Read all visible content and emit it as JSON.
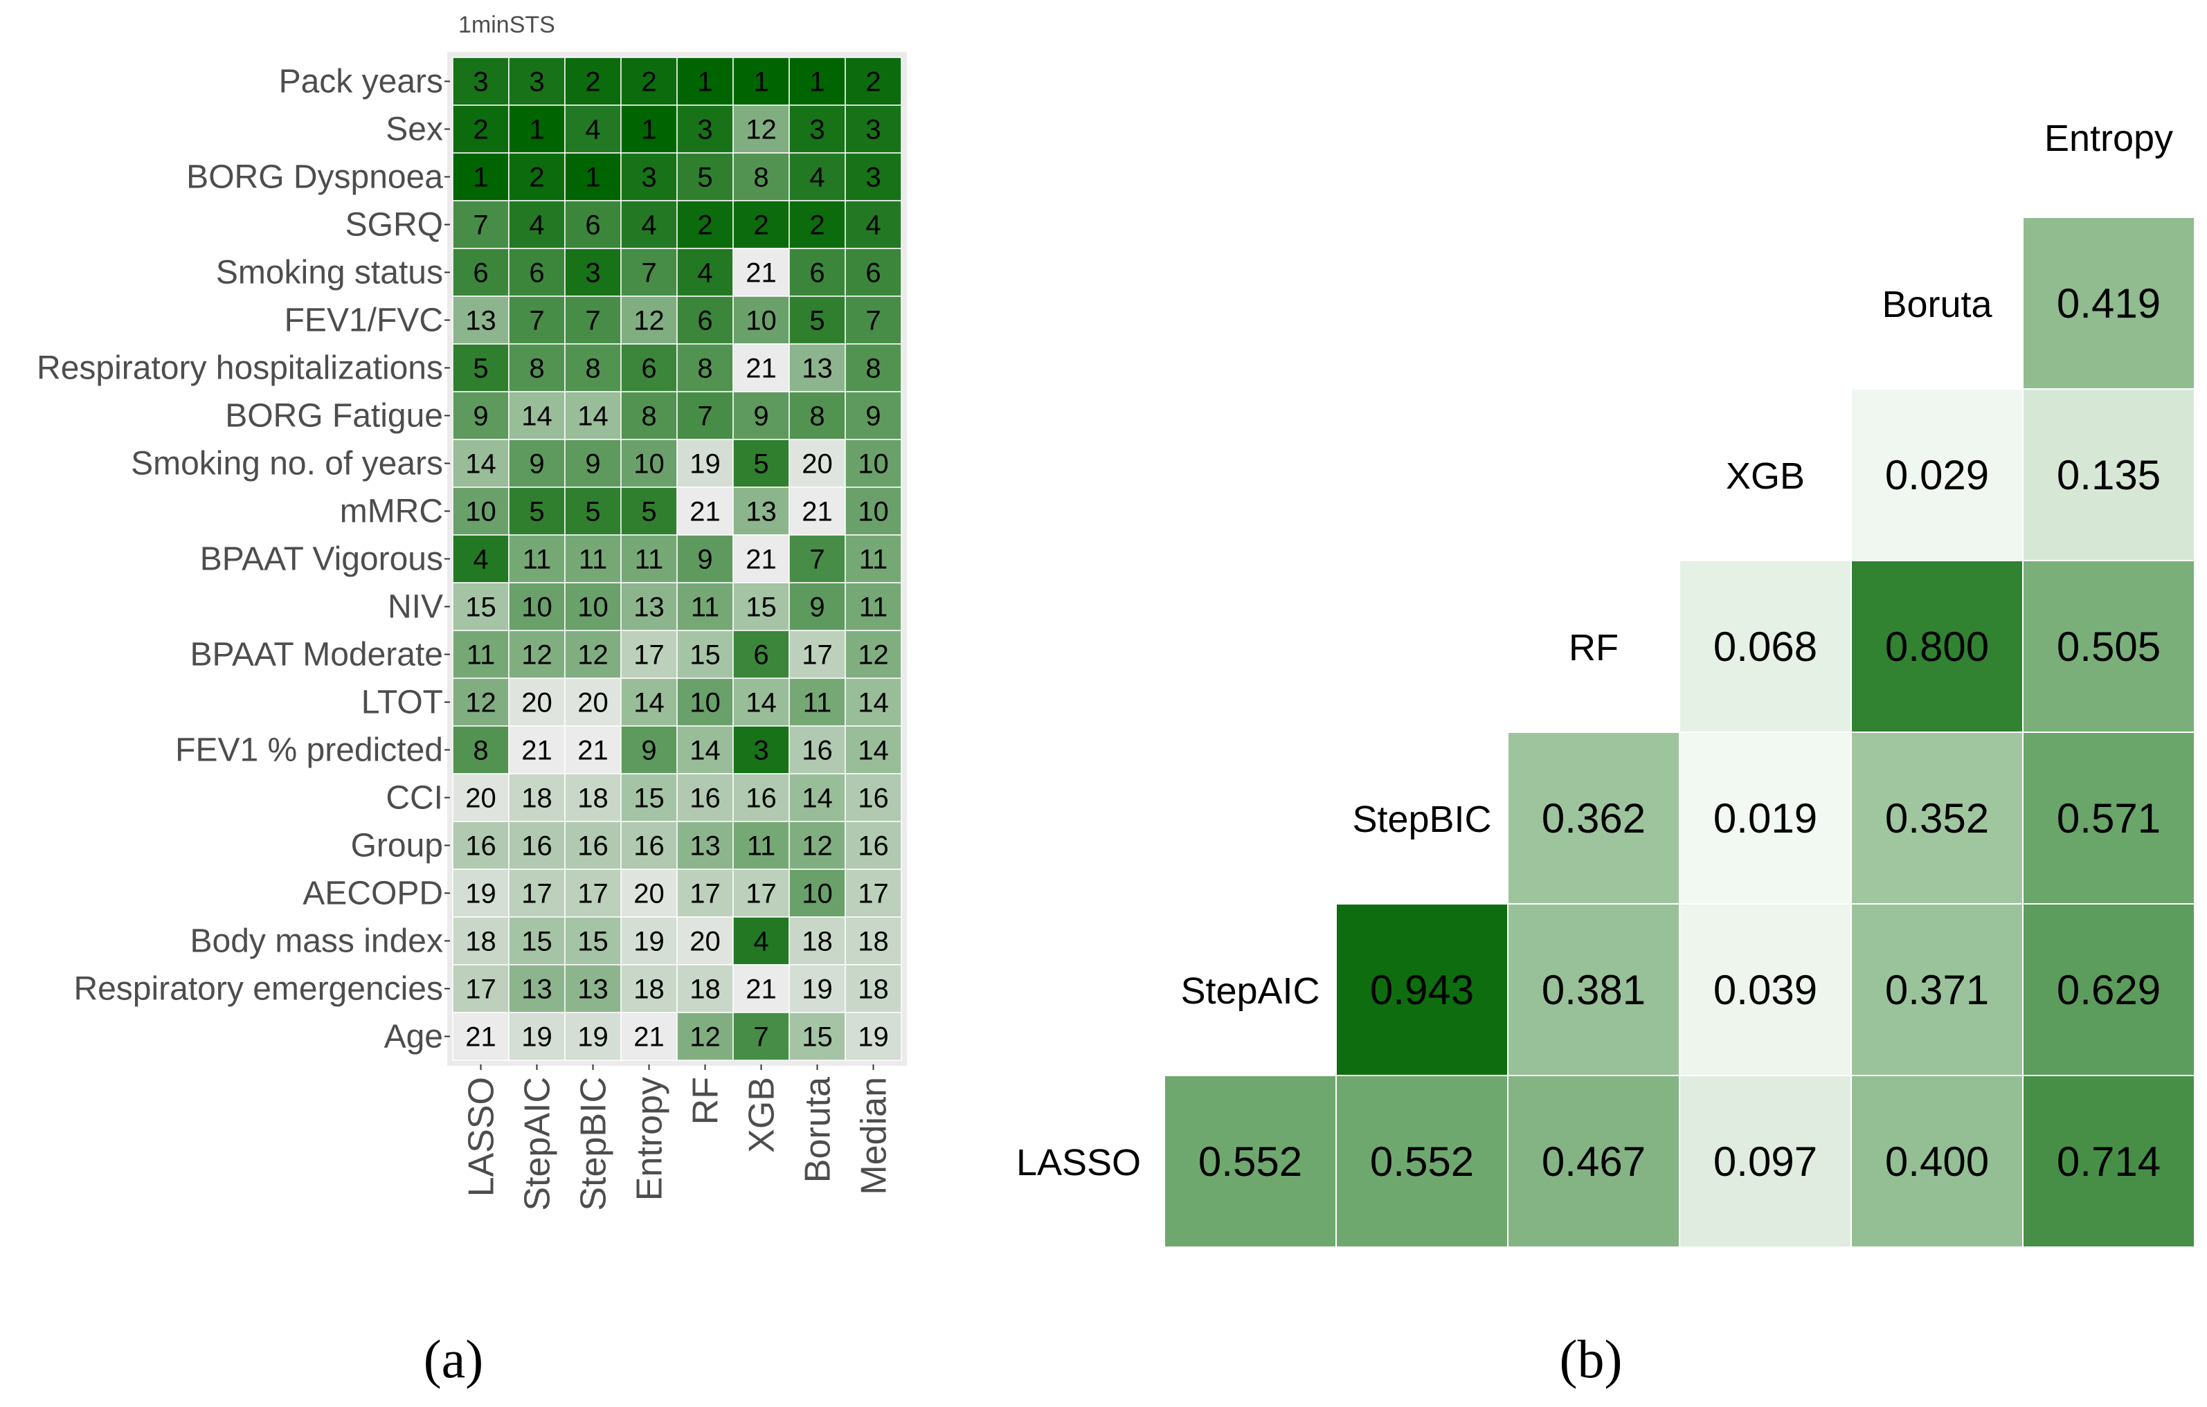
{
  "panel_a_caption": "(a)",
  "panel_b_caption": "(b)",
  "colors": {
    "high": "#006400",
    "low": "#ebebeb",
    "panel_bg": "#ebebeb",
    "low_corr": "#f7fbf7"
  },
  "chart_data": [
    {
      "type": "heatmap",
      "title": "1minSTS",
      "xlabel": "",
      "ylabel": "",
      "columns": [
        "LASSO",
        "StepAIC",
        "StepBIC",
        "Entropy",
        "RF",
        "XGB",
        "Boruta",
        "Median"
      ],
      "rows": [
        "Pack years",
        "Sex",
        "BORG Dyspnoea",
        "SGRQ",
        "Smoking status",
        "FEV1/FVC",
        "Respiratory hospitalizations",
        "BORG Fatigue",
        "Smoking no. of years",
        "mMRC",
        "BPAAT Vigorous",
        "NIV",
        "BPAAT Moderate",
        "LTOT",
        "FEV1 % predicted",
        "CCI",
        "Group",
        "AECOPD",
        "Body mass index",
        "Respiratory emergencies",
        "Age"
      ],
      "values": [
        [
          3,
          3,
          2,
          2,
          1,
          1,
          1,
          2
        ],
        [
          2,
          1,
          4,
          1,
          3,
          12,
          3,
          3
        ],
        [
          1,
          2,
          1,
          3,
          5,
          8,
          4,
          3
        ],
        [
          7,
          4,
          6,
          4,
          2,
          2,
          2,
          4
        ],
        [
          6,
          6,
          3,
          7,
          4,
          21,
          6,
          6
        ],
        [
          13,
          7,
          7,
          12,
          6,
          10,
          5,
          7
        ],
        [
          5,
          8,
          8,
          6,
          8,
          21,
          13,
          8
        ],
        [
          9,
          14,
          14,
          8,
          7,
          9,
          8,
          9
        ],
        [
          14,
          9,
          9,
          10,
          19,
          5,
          20,
          10
        ],
        [
          10,
          5,
          5,
          5,
          21,
          13,
          21,
          10
        ],
        [
          4,
          11,
          11,
          11,
          9,
          21,
          7,
          11
        ],
        [
          15,
          10,
          10,
          13,
          11,
          15,
          9,
          11
        ],
        [
          11,
          12,
          12,
          17,
          15,
          6,
          17,
          12
        ],
        [
          12,
          20,
          20,
          14,
          10,
          14,
          11,
          14
        ],
        [
          8,
          21,
          21,
          9,
          14,
          3,
          16,
          14
        ],
        [
          20,
          18,
          18,
          15,
          16,
          16,
          14,
          16
        ],
        [
          16,
          16,
          16,
          16,
          13,
          11,
          12,
          16
        ],
        [
          19,
          17,
          17,
          20,
          17,
          17,
          10,
          17
        ],
        [
          18,
          15,
          15,
          19,
          20,
          4,
          18,
          18
        ],
        [
          17,
          13,
          13,
          18,
          18,
          21,
          19,
          18
        ],
        [
          21,
          19,
          19,
          21,
          12,
          7,
          15,
          19
        ]
      ],
      "value_range": [
        1,
        21
      ]
    },
    {
      "type": "heatmap",
      "title": "",
      "methods": [
        "LASSO",
        "StepAIC",
        "StepBIC",
        "RF",
        "XGB",
        "Boruta",
        "Entropy"
      ],
      "matrix": [
        [
          null,
          0.552,
          0.552,
          0.467,
          0.097,
          0.4,
          0.714
        ],
        [
          null,
          null,
          0.943,
          0.381,
          0.039,
          0.371,
          0.629
        ],
        [
          null,
          null,
          null,
          0.362,
          0.019,
          0.352,
          0.571
        ],
        [
          null,
          null,
          null,
          null,
          0.068,
          0.8,
          0.505
        ],
        [
          null,
          null,
          null,
          null,
          null,
          0.029,
          0.135
        ],
        [
          null,
          null,
          null,
          null,
          null,
          null,
          0.419
        ]
      ],
      "labels": [
        "0.552",
        "0.552",
        "0.467",
        "0.097",
        "0.400",
        "0.714",
        "0.943",
        "0.381",
        "0.039",
        "0.371",
        "0.629",
        "0.362",
        "0.019",
        "0.352",
        "0.571",
        "0.068",
        "0.800",
        "0.505",
        "0.029",
        "0.135",
        "0.419"
      ],
      "value_range": [
        0,
        1
      ]
    }
  ]
}
